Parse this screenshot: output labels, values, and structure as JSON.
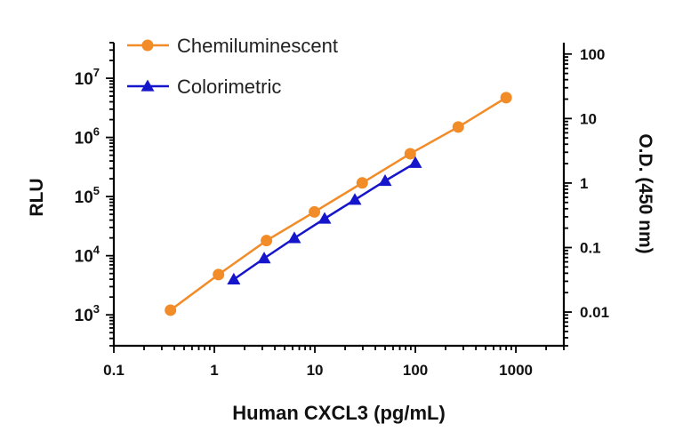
{
  "chart_data": {
    "type": "line",
    "xlabel": "Human CXCL3 (pg/mL)",
    "ylabel": "RLU",
    "y2label": "O.D. (450 nm)",
    "x_scale": "log",
    "y_scale": "log",
    "y2_scale": "log",
    "xlim": [
      0.1,
      3000
    ],
    "ylim": [
      300,
      40000000
    ],
    "y2lim": [
      0.003,
      150
    ],
    "grid": false,
    "legend_position": "top-left",
    "x_ticks": [
      {
        "value": 0.1,
        "label": "0.1"
      },
      {
        "value": 1,
        "label": "1"
      },
      {
        "value": 10,
        "label": "10"
      },
      {
        "value": 100,
        "label": "100"
      },
      {
        "value": 1000,
        "label": "1000"
      }
    ],
    "y_ticks": [
      {
        "value": 1000,
        "base": "10",
        "exp": "3"
      },
      {
        "value": 10000,
        "base": "10",
        "exp": "4"
      },
      {
        "value": 100000,
        "base": "10",
        "exp": "5"
      },
      {
        "value": 1000000,
        "base": "10",
        "exp": "6"
      },
      {
        "value": 10000000,
        "base": "10",
        "exp": "7"
      }
    ],
    "y2_ticks": [
      {
        "value": 0.01,
        "label": "0.01"
      },
      {
        "value": 0.1,
        "label": "0.1"
      },
      {
        "value": 1,
        "label": "1"
      },
      {
        "value": 10,
        "label": "10"
      },
      {
        "value": 100,
        "label": "100"
      }
    ],
    "series": [
      {
        "name": "Chemiluminescent",
        "axis": "left",
        "color": "#F28C28",
        "marker": "circle",
        "x": [
          0.366,
          1.1,
          3.3,
          9.9,
          29.6,
          88.9,
          267,
          800
        ],
        "y": [
          1200,
          4800,
          18000,
          55000,
          170000,
          530000,
          1500000,
          4700000
        ]
      },
      {
        "name": "Colorimetric",
        "axis": "right",
        "color": "#1515CC",
        "marker": "triangle",
        "x": [
          1.56,
          3.13,
          6.25,
          12.5,
          25,
          50,
          100
        ],
        "y": [
          0.032,
          0.068,
          0.14,
          0.28,
          0.55,
          1.08,
          2.05
        ]
      }
    ]
  }
}
